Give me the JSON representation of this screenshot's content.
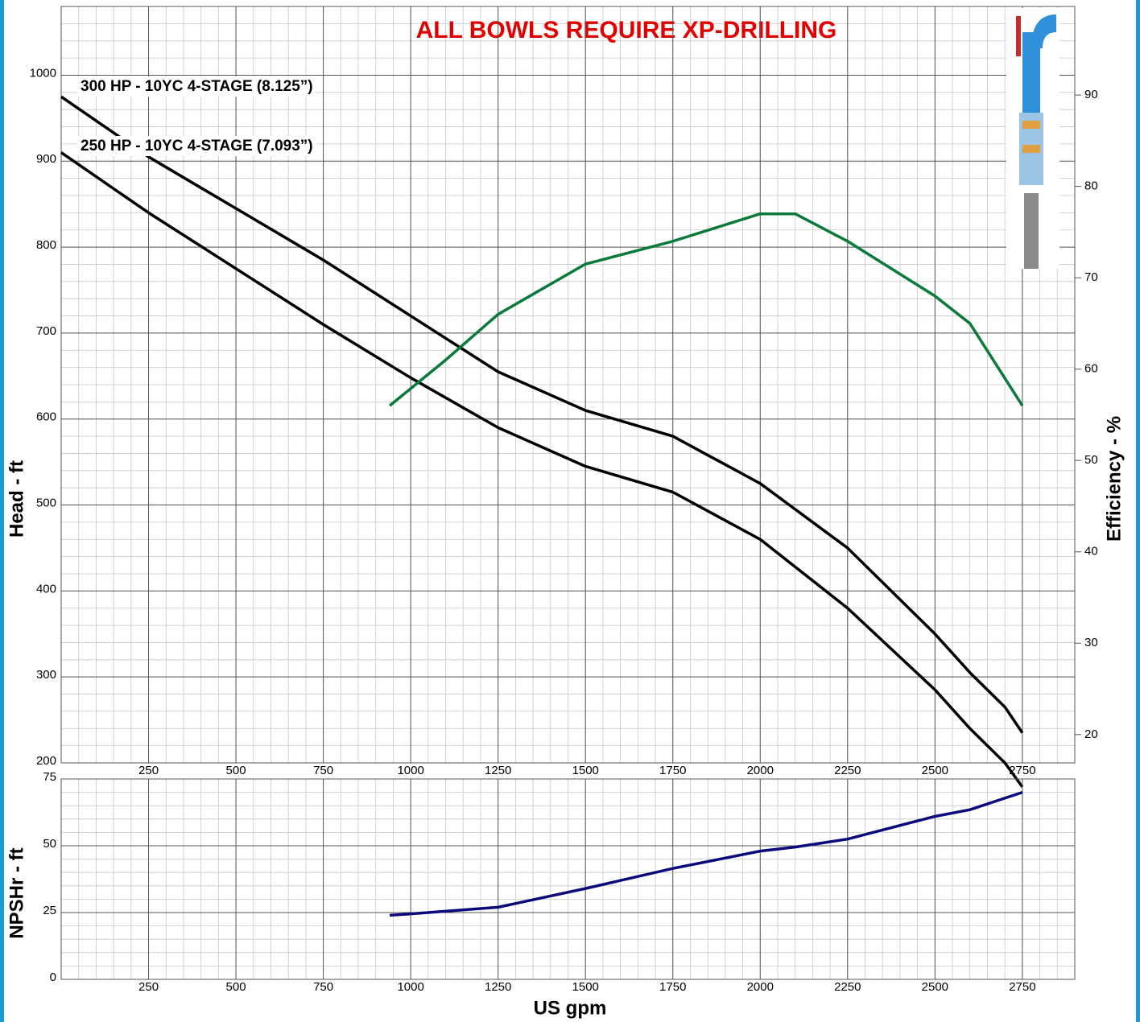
{
  "chart_data": [
    {
      "type": "line",
      "title": "ALL BOWLS REQUIRE XP-DRILLING",
      "ylabel": "Head - ft",
      "y2label": "Efficiency - %",
      "xlim": [
        0,
        2900
      ],
      "xticks": [
        250,
        500,
        750,
        1000,
        1250,
        1500,
        1750,
        2000,
        2250,
        2500,
        2750
      ],
      "ylim": [
        200,
        1080
      ],
      "yticks": [
        200,
        300,
        400,
        500,
        600,
        700,
        800,
        900,
        1000
      ],
      "y2lim": [
        16.9,
        99.7
      ],
      "y2ticks": [
        20,
        30,
        40,
        50,
        60,
        70,
        80,
        90
      ],
      "grid": true,
      "series": [
        {
          "name": "300 HP - 10YC 4-STAGE (8.125”)",
          "color": "#000000",
          "x": [
            0,
            250,
            500,
            750,
            1000,
            1250,
            1500,
            1750,
            2000,
            2250,
            2500,
            2600,
            2700,
            2750
          ],
          "values": [
            975,
            905,
            845,
            785,
            720,
            655,
            610,
            580,
            525,
            450,
            350,
            305,
            265,
            235
          ]
        },
        {
          "name": "250 HP - 10YC 4-STAGE (7.093”)",
          "color": "#000000",
          "x": [
            0,
            250,
            500,
            750,
            1000,
            1250,
            1500,
            1750,
            2000,
            2250,
            2500,
            2600,
            2700,
            2750
          ],
          "values": [
            910,
            840,
            775,
            710,
            648,
            590,
            545,
            515,
            460,
            380,
            285,
            240,
            200,
            172
          ]
        },
        {
          "color": "#0a7a3a",
          "axis": "y2",
          "x": [
            940,
            1100,
            1250,
            1500,
            1750,
            2000,
            2100,
            2250,
            2500,
            2600,
            2750
          ],
          "values": [
            56,
            61,
            66,
            71.5,
            74,
            77,
            77,
            74,
            68,
            65,
            56
          ]
        }
      ]
    },
    {
      "type": "line",
      "ylabel": "NPSHr - ft",
      "xlabel": "US gpm",
      "xlim": [
        0,
        2900
      ],
      "xticks": [
        250,
        500,
        750,
        1000,
        1250,
        1500,
        1750,
        2000,
        2250,
        2500,
        2750
      ],
      "ylim": [
        0,
        75
      ],
      "yticks": [
        0,
        25,
        50,
        75
      ],
      "grid": true,
      "series": [
        {
          "color": "#0a0a7a",
          "x": [
            940,
            1000,
            1250,
            1500,
            1750,
            2000,
            2100,
            2250,
            2500,
            2600,
            2750
          ],
          "values": [
            24,
            24.5,
            27,
            34,
            41.5,
            48,
            49.5,
            52.5,
            61,
            63.5,
            70
          ]
        }
      ]
    }
  ]
}
